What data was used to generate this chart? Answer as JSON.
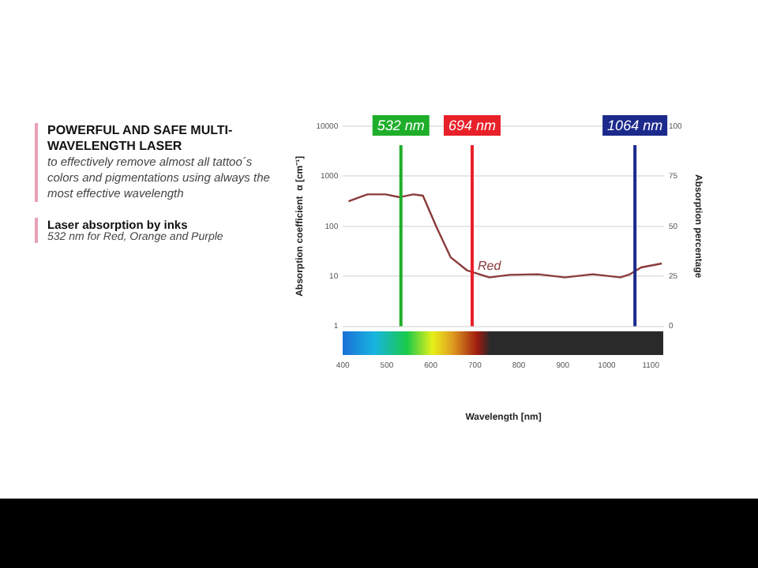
{
  "chart_data": {
    "type": "line",
    "title": "POWERFUL AND SAFE MULTI-WAVELENGTH LASER",
    "subtitle": "to effectively remove almost all tattoo´s colors and pigmentations using always the most effective wavelength",
    "annotations": [
      "Laser absorption by inks",
      "532 nm for Red, Orange and Purple"
    ],
    "xlabel": "Wavelength [nm]",
    "ylabel": "Absorption coefficient  α [cm⁻¹]",
    "y2label": "Absorption percentage",
    "x": [
      413,
      456,
      497,
      529,
      560,
      582,
      613,
      645,
      683,
      733,
      780,
      843,
      905,
      968,
      1031,
      1053,
      1078,
      1125
    ],
    "series": [
      {
        "name": "Red",
        "color": "#8b3a3a",
        "values": [
          316,
          434,
          434,
          380,
          434,
          410,
          96,
          24,
          13,
          9.5,
          10.7,
          11,
          9.5,
          11,
          9.5,
          11,
          15,
          18
        ]
      }
    ],
    "log": "y",
    "grid": "y",
    "marker": "none",
    "line_style": "solid",
    "xlim": [
      400,
      1130
    ],
    "xticks": [
      400,
      500,
      600,
      700,
      800,
      900,
      1000,
      1100
    ],
    "ylim": [
      1,
      10000
    ],
    "yticks": [
      1,
      10,
      100,
      1000,
      10000
    ],
    "y2lim": [
      0,
      100
    ],
    "y2ticks": [
      0,
      25,
      50,
      75,
      100
    ],
    "ref_lines": [
      {
        "axis": "x",
        "value": 532,
        "label": "532 nm",
        "color": "#1fae2a"
      },
      {
        "axis": "x",
        "value": 694,
        "label": "694 nm",
        "color": "#e8202a"
      },
      {
        "axis": "x",
        "value": 1064,
        "label": "1064 nm",
        "color": "#1c2a8c"
      }
    ]
  }
}
